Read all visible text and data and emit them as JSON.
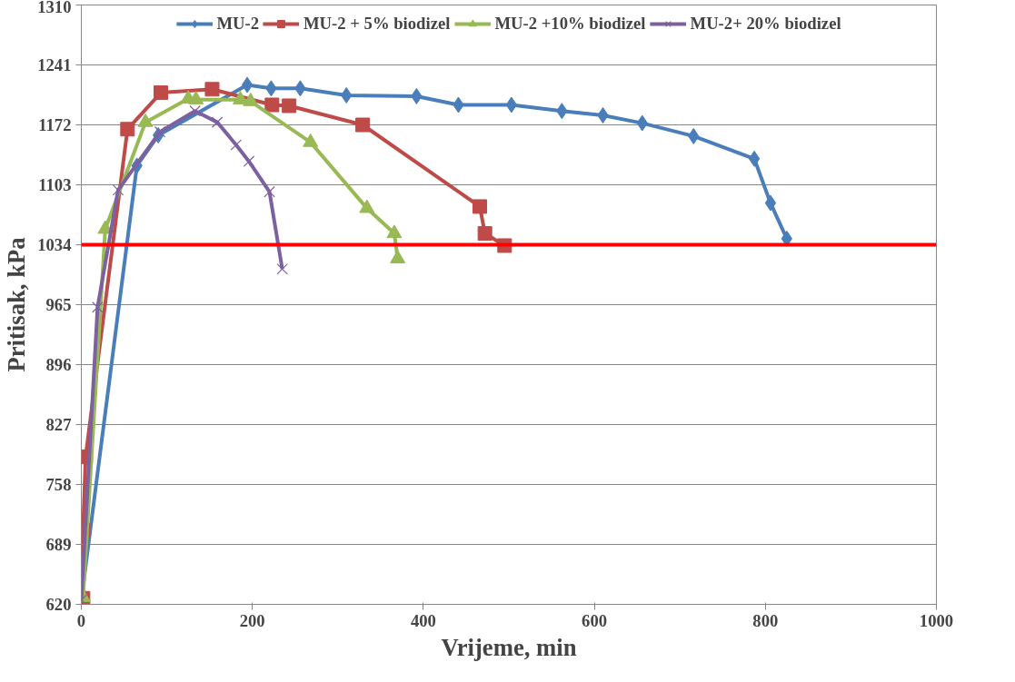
{
  "chart_data": {
    "type": "line",
    "xlabel": "Vrijeme, min",
    "ylabel": "Pritisak, kPa",
    "xlim": [
      0,
      1000
    ],
    "xticks": [
      0,
      200,
      400,
      600,
      800,
      1000
    ],
    "ylim": [
      620,
      1310
    ],
    "yticks": [
      620,
      689,
      758,
      827,
      896,
      965,
      1034,
      1103,
      1172,
      1241,
      1310
    ],
    "grid": "y",
    "legend": "top",
    "line_style": "solid",
    "series": [
      {
        "name": "MU-2",
        "color": "#4a7ebb",
        "marker": "diamond",
        "x": [
          0,
          65,
          90,
          194,
          222,
          256,
          310,
          392,
          441,
          503,
          562,
          610,
          656,
          716,
          787,
          806,
          825
        ],
        "values": [
          625,
          1125,
          1160,
          1218,
          1214,
          1214,
          1206,
          1205,
          1195,
          1195,
          1188,
          1183,
          1174,
          1159,
          1133,
          1082,
          1041
        ]
      },
      {
        "name": "MU-2 + 5% biodizel",
        "color": "#be4b48",
        "marker": "square",
        "x": [
          2,
          2,
          5,
          54,
          93,
          153,
          223,
          243,
          329,
          466,
          472,
          495
        ],
        "values": [
          627,
          705,
          790,
          1167,
          1209,
          1213,
          1195,
          1194,
          1172,
          1078,
          1047,
          1033
        ]
      },
      {
        "name": "MU-2 +10% biodizel",
        "color": "#98b954",
        "marker": "triangle",
        "x": [
          2,
          28,
          75,
          125,
          134,
          186,
          198,
          268,
          334,
          366,
          370
        ],
        "values": [
          628,
          1052,
          1175,
          1202,
          1201,
          1201,
          1199,
          1152,
          1076,
          1047,
          1018
        ]
      },
      {
        "name": "MU-2+ 20% biodizel",
        "color": "#7d60a0",
        "marker": "cross",
        "x": [
          0,
          19,
          43,
          92,
          133,
          159,
          181,
          196,
          220,
          235
        ],
        "values": [
          625,
          962,
          1097,
          1164,
          1188,
          1175,
          1149,
          1130,
          1095,
          1006
        ]
      }
    ],
    "ref_lines": [
      {
        "axis": "y",
        "value": 1034,
        "color": "#ff0000",
        "line_style": "solid"
      }
    ]
  }
}
